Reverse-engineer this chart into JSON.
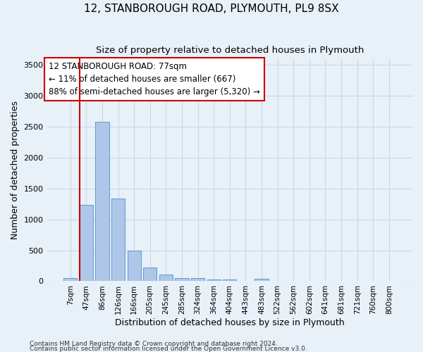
{
  "title1": "12, STANBOROUGH ROAD, PLYMOUTH, PL9 8SX",
  "title2": "Size of property relative to detached houses in Plymouth",
  "xlabel": "Distribution of detached houses by size in Plymouth",
  "ylabel": "Number of detached properties",
  "bar_labels": [
    "7sqm",
    "47sqm",
    "86sqm",
    "126sqm",
    "166sqm",
    "205sqm",
    "245sqm",
    "285sqm",
    "324sqm",
    "364sqm",
    "404sqm",
    "443sqm",
    "483sqm",
    "522sqm",
    "562sqm",
    "602sqm",
    "641sqm",
    "681sqm",
    "721sqm",
    "760sqm",
    "800sqm"
  ],
  "bar_values": [
    55,
    1240,
    2580,
    1340,
    500,
    220,
    110,
    55,
    50,
    30,
    25,
    0,
    35,
    0,
    0,
    0,
    0,
    0,
    0,
    0,
    0
  ],
  "bar_color": "#aec6e8",
  "bar_edge_color": "#5b9bd5",
  "vline_color": "#cc0000",
  "annotation_text": "12 STANBOROUGH ROAD: 77sqm\n← 11% of detached houses are smaller (667)\n88% of semi-detached houses are larger (5,320) →",
  "annotation_box_color": "#ffffff",
  "annotation_box_edge": "#cc0000",
  "ylim": [
    0,
    3600
  ],
  "yticks": [
    0,
    500,
    1000,
    1500,
    2000,
    2500,
    3000,
    3500
  ],
  "grid_color": "#c8d8e8",
  "bg_color": "#e8f0f8",
  "footer1": "Contains HM Land Registry data © Crown copyright and database right 2024.",
  "footer2": "Contains public sector information licensed under the Open Government Licence v3.0."
}
